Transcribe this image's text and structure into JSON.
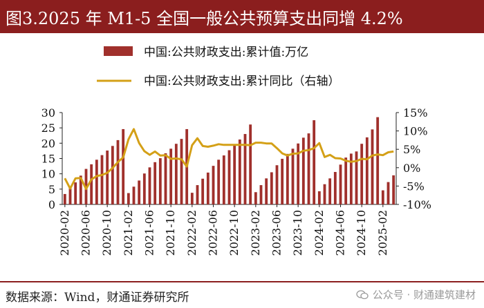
{
  "title": "图3.2025 年 M1-5 全国一般公共预算支出同增 4.2%",
  "source": "数据来源：Wind，财通证券研究所",
  "watermark": "公众号 · 财通建筑建材",
  "colors": {
    "brand": "#8B1E1E",
    "bar": "#A0302C",
    "line": "#D4A017"
  },
  "chart_data": {
    "type": "bar+line",
    "legend": [
      {
        "label": "中国:公共财政支出:累计值:万亿",
        "kind": "bar"
      },
      {
        "label": "中国:公共财政支出:累计同比（右轴）",
        "kind": "line"
      }
    ],
    "y_left": {
      "min": 0,
      "max": 30,
      "ticks": [
        "0",
        "5",
        "10",
        "15",
        "20",
        "25",
        "30"
      ]
    },
    "y_right": {
      "min": -10,
      "max": 15,
      "ticks": [
        "-10%",
        "-5%",
        "0%",
        "5%",
        "10%",
        "15%"
      ]
    },
    "x_tick_labels": [
      "2020-02",
      "2020-06",
      "2020-10",
      "2021-02",
      "2021-06",
      "2021-10",
      "2022-02",
      "2022-06",
      "2022-10",
      "2023-02",
      "2023-06",
      "2023-10",
      "2024-02",
      "2024-06",
      "2024-10",
      "2025-02"
    ],
    "series": [
      {
        "name": "中国:公共财政支出:累计值:万亿",
        "type": "bar",
        "axis": "left",
        "values": [
          3.4,
          5.5,
          7.2,
          9.4,
          11.6,
          13.1,
          14.6,
          16.1,
          17.6,
          19.1,
          21.0,
          24.6,
          3.7,
          5.8,
          7.8,
          10.1,
          12.1,
          13.8,
          15.1,
          16.7,
          18.2,
          19.8,
          21.4,
          24.6,
          3.8,
          6.3,
          8.4,
          10.4,
          12.6,
          14.6,
          16.0,
          17.7,
          19.6,
          21.2,
          23.0,
          26.1,
          4.0,
          6.3,
          8.5,
          10.5,
          12.8,
          14.9,
          16.5,
          18.2,
          19.9,
          21.8,
          23.2,
          27.5,
          4.3,
          6.6,
          8.5,
          10.6,
          13.0,
          15.3,
          16.6,
          17.3,
          19.8,
          21.9,
          24.5,
          28.5,
          4.6,
          7.3,
          9.5
        ]
      },
      {
        "name": "中国:公共财政支出:累计同比（右轴）",
        "type": "line",
        "axis": "right",
        "values": [
          -2.9,
          -5.7,
          -2.9,
          -2.8,
          -5.8,
          -3.2,
          -2.3,
          -2.0,
          -1.4,
          -0.1,
          1.5,
          2.8,
          7.7,
          10.5,
          6.7,
          4.5,
          3.5,
          4.4,
          3.3,
          3.4,
          2.4,
          2.5,
          2.3,
          0.3,
          6.1,
          8.0,
          5.9,
          5.7,
          6.0,
          6.4,
          6.2,
          6.2,
          6.2,
          6.2,
          6.2,
          6.1,
          6.8,
          6.8,
          6.6,
          6.6,
          5.3,
          3.9,
          3.3,
          3.8,
          3.9,
          4.6,
          4.8,
          5.3,
          6.7,
          2.9,
          3.5,
          2.6,
          2.5,
          1.9,
          1.6,
          1.8,
          2.4,
          2.3,
          3.3,
          3.6,
          3.4,
          4.2,
          4.4
        ]
      }
    ]
  }
}
